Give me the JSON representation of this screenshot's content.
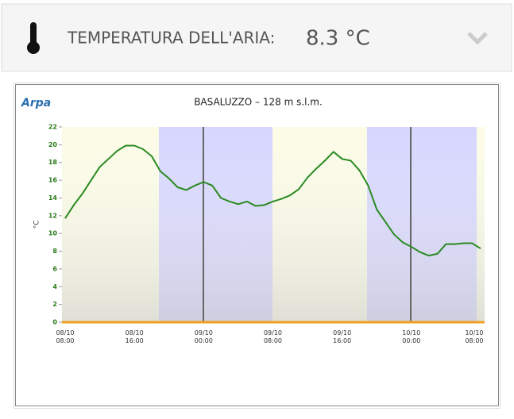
{
  "header": {
    "label": "TEMPERATURA DELL'ARIA:",
    "value": "8.3 °C"
  },
  "chart_data": {
    "type": "line",
    "title": "BASALUZZO – 128 m s.l.m.",
    "logo": "Arpa",
    "y_label": "°C",
    "categories": [
      "08/10 08:00",
      null,
      null,
      null,
      null,
      null,
      null,
      null,
      "08/10 16:00",
      null,
      null,
      null,
      null,
      null,
      null,
      null,
      "09/10 00:00",
      null,
      null,
      null,
      null,
      null,
      null,
      null,
      "09/10 08:00",
      null,
      null,
      null,
      null,
      null,
      null,
      null,
      "09/10 16:00",
      null,
      null,
      null,
      null,
      null,
      null,
      null,
      "10/10 00:00",
      null,
      null,
      null,
      null,
      null,
      null,
      null,
      "10/10 08:00"
    ],
    "values": [
      11.7,
      13.2,
      14.5,
      16,
      17.5,
      18.4,
      19.3,
      19.9,
      19.9,
      19.5,
      18.7,
      17,
      16.2,
      15.2,
      14.9,
      15.4,
      15.8,
      15.4,
      14,
      13.6,
      13.3,
      13.6,
      13.1,
      13.2,
      13.6,
      13.9,
      14.3,
      15,
      16.3,
      17.3,
      18.2,
      19.2,
      18.4,
      18.2,
      17.1,
      15.4,
      12.7,
      11.3,
      9.9,
      9,
      8.5,
      7.9,
      7.5,
      7.7,
      8.8,
      8.8,
      8.9,
      8.9,
      8.3
    ],
    "color": "#2a8a22",
    "ylim": [
      0,
      22
    ],
    "yticks": [
      0,
      2,
      4,
      6,
      8,
      10,
      12,
      14,
      16,
      18,
      20,
      22
    ]
  }
}
